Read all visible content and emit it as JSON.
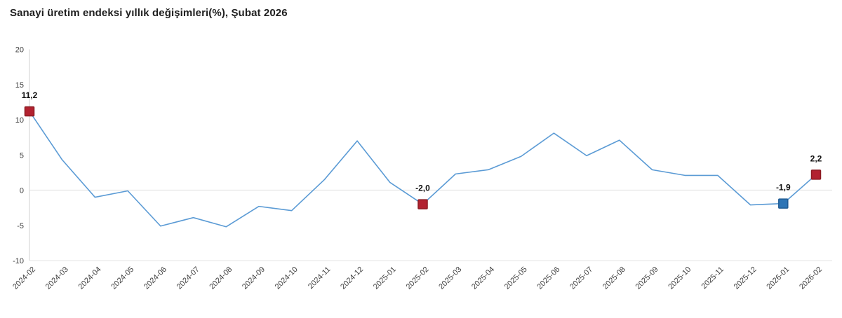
{
  "page": {
    "background": "#ffffff"
  },
  "chart_data": {
    "type": "line",
    "title": "Sanayi üretim endeksi yıllık değişimleri(%), Şubat 2026",
    "xlabel": "",
    "ylabel": "",
    "categories": [
      "2024-02",
      "2024-03",
      "2024-04",
      "2024-05",
      "2024-06",
      "2024-07",
      "2024-08",
      "2024-09",
      "2024-10",
      "2024-11",
      "2024-12",
      "2025-01",
      "2025-02",
      "2025-03",
      "2025-04",
      "2025-05",
      "2025-06",
      "2025-07",
      "2025-08",
      "2025-09",
      "2025-10",
      "2025-11",
      "2025-12",
      "2026-01",
      "2026-02"
    ],
    "values": [
      11.2,
      4.3,
      -1.0,
      -0.1,
      -5.1,
      -3.9,
      -5.2,
      -2.3,
      -2.9,
      1.5,
      7.0,
      1.1,
      -2.0,
      2.3,
      2.9,
      4.8,
      8.1,
      4.9,
      7.1,
      2.9,
      2.1,
      2.1,
      -2.1,
      -1.9,
      2.2
    ],
    "ylim": [
      -10,
      20
    ],
    "y_ticks": [
      20,
      15,
      10,
      5,
      0,
      -5,
      -10
    ],
    "grid": "zero-line-and-bottom-only",
    "legend": "none",
    "highlighted_points": [
      {
        "category": "2024-02",
        "index": 0,
        "value": 11.2,
        "label": "11,2",
        "marker": "red"
      },
      {
        "category": "2025-02",
        "index": 12,
        "value": -2.0,
        "label": "-2,0",
        "marker": "red"
      },
      {
        "category": "2026-01",
        "index": 23,
        "value": -1.9,
        "label": "-1,9",
        "marker": "blue"
      },
      {
        "category": "2026-02",
        "index": 24,
        "value": 2.2,
        "label": "2,2",
        "marker": "red"
      }
    ],
    "colors": {
      "line": "#5b9bd5",
      "marker_red": "#b22230",
      "marker_red_border": "#8c1b22",
      "marker_blue": "#2e75b6",
      "marker_blue_border": "#215c94",
      "axis_line": "#d9d9d9",
      "zero_line": "#e7e7e7",
      "bottom_line": "#e9e9e9",
      "tick_text": "#404040",
      "title_text": "#1f1f1f",
      "data_label_text": "#111111"
    }
  }
}
